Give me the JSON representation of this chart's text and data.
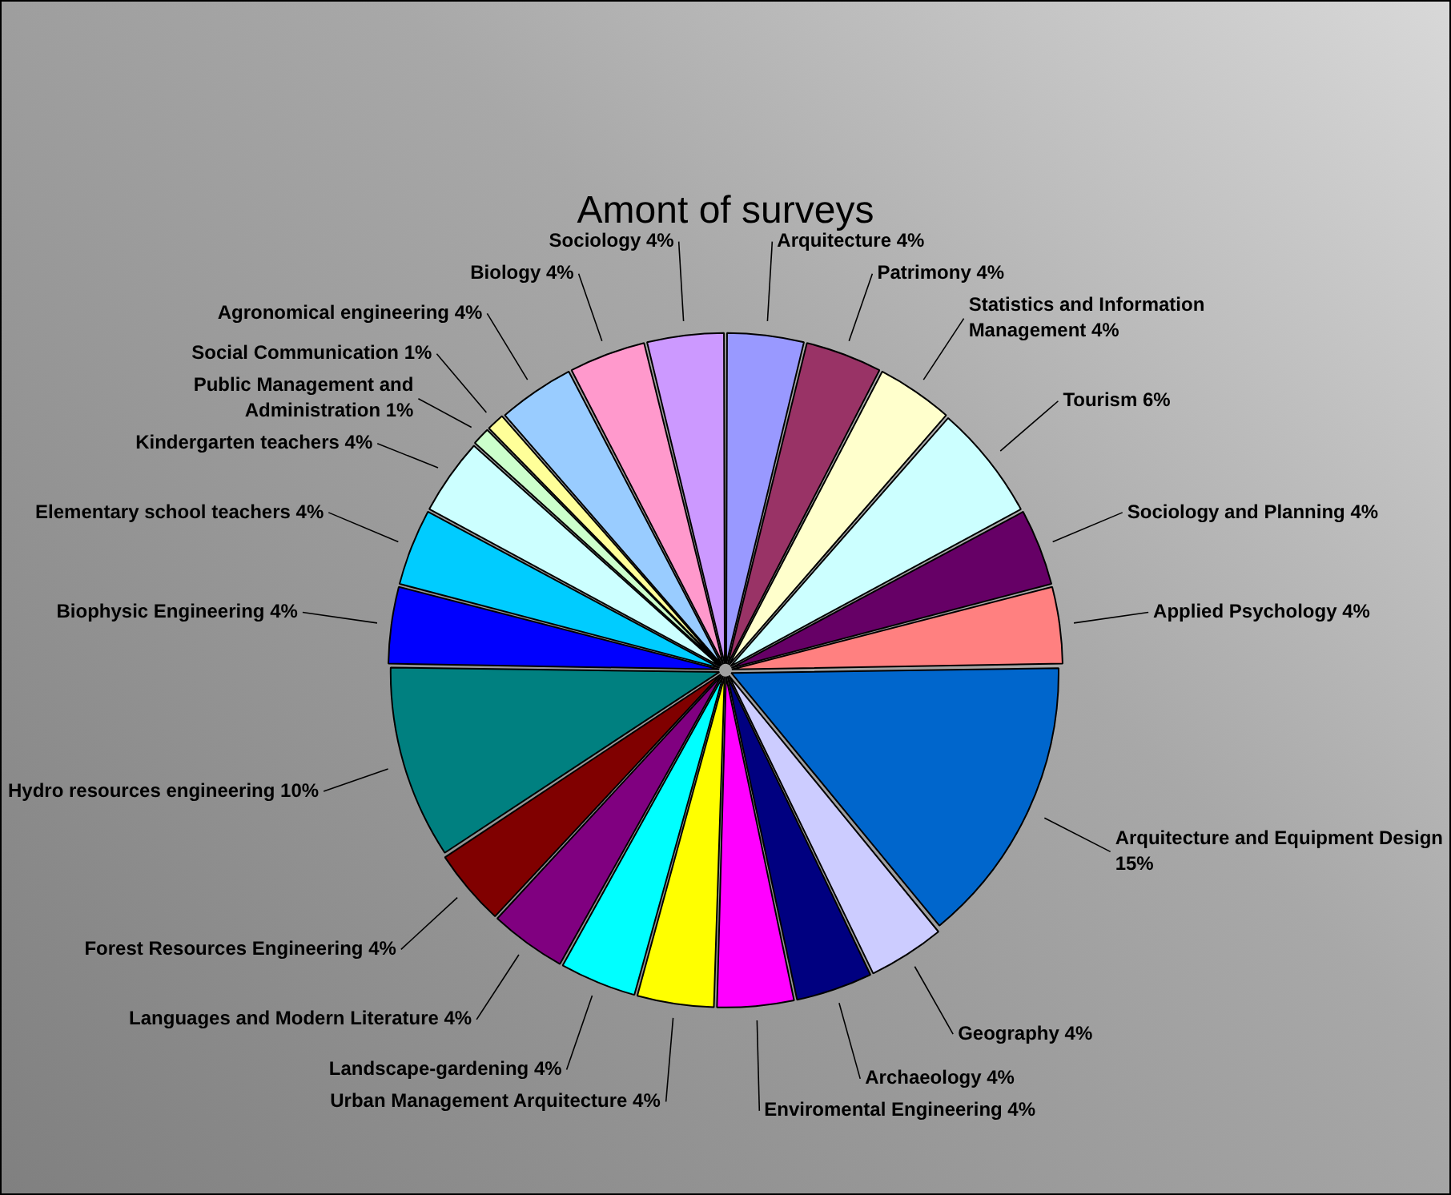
{
  "chart_data": {
    "type": "pie",
    "title": "Amont of surveys",
    "categories": [
      "Arquitecture",
      "Patrimony",
      "Statistics and Information Management",
      "Tourism",
      "Sociology and Planning",
      "Applied Psychology",
      "Arquitecture and Equipment Design",
      "Geography",
      "Archaeology",
      "Enviromental Engineering",
      "Urban Management Arquitecture",
      "Landscape-gardening",
      "Languages and Modern Literature",
      "Forest Resources Engineering",
      "Hydro resources engineering",
      "Biophysic Engineering",
      "Elementary school teachers",
      "Kindergarten teachers",
      "Public Management and Administration",
      "Social Communication",
      "Agronomical engineering",
      "Biology",
      "Sociology"
    ],
    "values": [
      4,
      4,
      4,
      6,
      4,
      4,
      15,
      4,
      4,
      4,
      4,
      4,
      4,
      4,
      10,
      4,
      4,
      4,
      1,
      1,
      4,
      4,
      4
    ],
    "value_labels": [
      "4%",
      "4%",
      "4%",
      "6%",
      "4%",
      "4%",
      "15%",
      "4%",
      "4%",
      "4%",
      "4%",
      "4%",
      "4%",
      "4%",
      "10%",
      "4%",
      "4%",
      "4%",
      "1%",
      "1%",
      "4%",
      "4%",
      "4%"
    ],
    "colors": [
      "#9999ff",
      "#993366",
      "#ffffcc",
      "#ccffff",
      "#660066",
      "#ff8080",
      "#0066cc",
      "#ccccff",
      "#000080",
      "#ff00ff",
      "#ffff00",
      "#00ffff",
      "#800080",
      "#800000",
      "#008080",
      "#0000ff",
      "#00ccff",
      "#ccffff",
      "#ccffcc",
      "#ffff99",
      "#99ccff",
      "#ff99cc",
      "#cc99ff"
    ]
  }
}
